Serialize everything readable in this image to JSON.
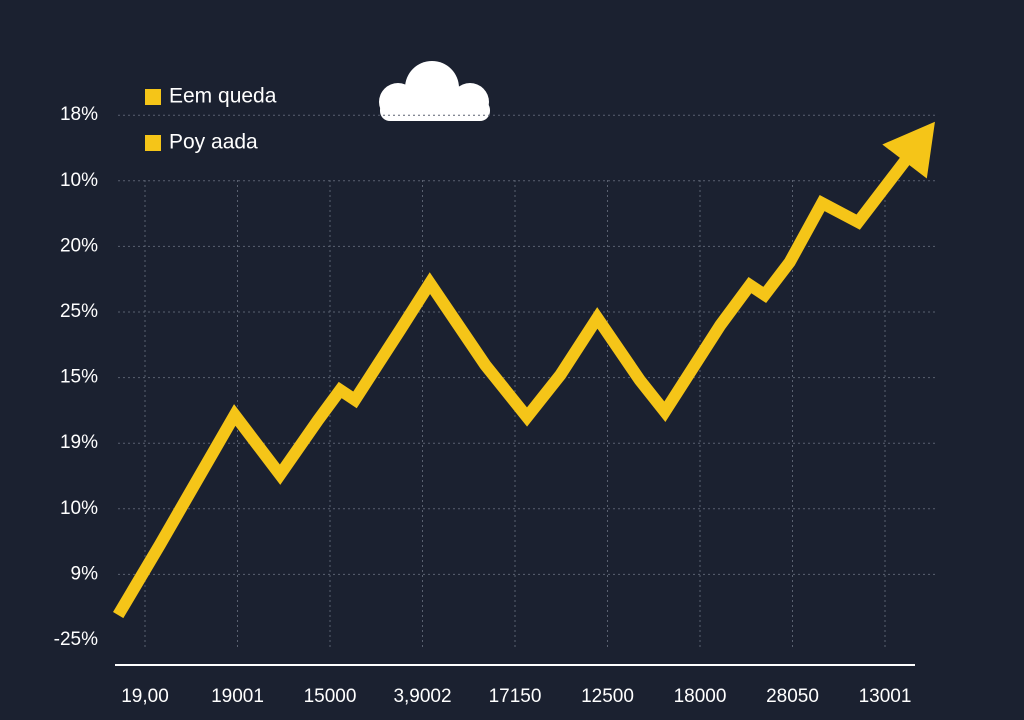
{
  "chart_data": {
    "type": "line",
    "legend": [
      {
        "name": "Eem queda",
        "color": "#f5c518"
      },
      {
        "name": "Poy aada",
        "color": "#f5c518"
      }
    ],
    "xticks": [
      {
        "value": 0,
        "label": "19,00"
      },
      {
        "value": 1,
        "label": "19001"
      },
      {
        "value": 2,
        "label": "15000"
      },
      {
        "value": 3,
        "label": "3,9002"
      },
      {
        "value": 4,
        "label": "17150"
      },
      {
        "value": 5,
        "label": "12500"
      },
      {
        "value": 6,
        "label": "18000"
      },
      {
        "value": 7,
        "label": "28050"
      },
      {
        "value": 8,
        "label": "13001"
      }
    ],
    "xlim": [
      -0.3,
      8.6
    ],
    "yticks": [
      {
        "value": 0,
        "label": "-25%"
      },
      {
        "value": 1,
        "label": "9%"
      },
      {
        "value": 2,
        "label": "10%"
      },
      {
        "value": 3,
        "label": "19%"
      },
      {
        "value": 4,
        "label": "15%"
      },
      {
        "value": 5,
        "label": "25%"
      },
      {
        "value": 6,
        "label": "20%"
      },
      {
        "value": 7,
        "label": "10%"
      },
      {
        "value": 8,
        "label": "18%"
      }
    ],
    "ylim": [
      0,
      8
    ],
    "grid": true,
    "series": [
      {
        "color": "#f5c518",
        "x": [
          -0.29,
          0.16,
          0.97,
          1.46,
          1.87,
          2.11,
          2.27,
          2.76,
          3.08,
          3.68,
          4.13,
          4.49,
          4.89,
          5.35,
          5.62,
          6.22,
          6.54,
          6.7,
          6.97,
          7.32,
          7.71,
          8.54
        ],
        "values": [
          0.38,
          1.45,
          3.43,
          2.52,
          3.35,
          3.81,
          3.66,
          4.73,
          5.44,
          4.19,
          3.4,
          4.04,
          4.91,
          3.96,
          3.48,
          4.8,
          5.41,
          5.26,
          5.76,
          6.66,
          6.37,
          7.9
        ]
      }
    ]
  }
}
